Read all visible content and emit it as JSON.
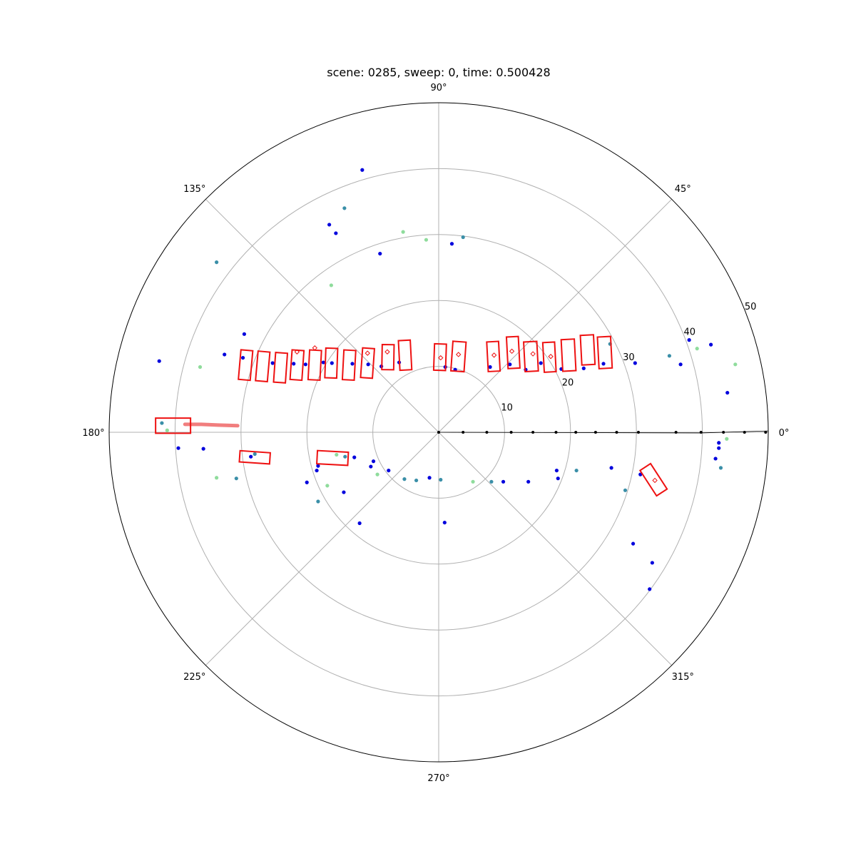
{
  "chart_data": {
    "type": "scatter",
    "projection": "polar",
    "title": "scene: 0285, sweep: 0, time: 0.500428",
    "angle_ticks_deg": [
      0,
      45,
      90,
      135,
      180,
      225,
      270,
      315
    ],
    "angle_tick_labels": [
      "0°",
      "45°",
      "90°",
      "135°",
      "180°",
      "225°",
      "270°",
      "315°"
    ],
    "radial_ticks": [
      10,
      20,
      30,
      40,
      50
    ],
    "radial_tick_labels": [
      "10",
      "20",
      "30",
      "40",
      "50"
    ],
    "rlim": [
      0,
      50
    ],
    "grid": true,
    "colors": {
      "boxes": "#ee1111",
      "trail": "#f07070",
      "points_dark": "#0000dd",
      "points_mid": "#3a8fa8",
      "points_light": "#8fdc9c",
      "grid": "#b0b0b0",
      "radar": "#000000"
    },
    "points": [
      [
        -11.6,
        39.8,
        0
      ],
      [
        -14.3,
        34.0,
        1
      ],
      [
        -16.6,
        31.5,
        0
      ],
      [
        -8.9,
        27.1,
        0
      ],
      [
        -5.4,
        30.4,
        2
      ],
      [
        2.0,
        28.6,
        0
      ],
      [
        3.7,
        29.6,
        1
      ],
      [
        -1.9,
        29.2,
        2
      ],
      [
        -33.7,
        25.8,
        1
      ],
      [
        -16.3,
        22.3,
        2
      ],
      [
        -15.6,
        30.2,
        0
      ],
      [
        -29.5,
        14.9,
        0
      ],
      [
        -42.4,
        10.8,
        0
      ],
      [
        -36.2,
        9.9,
        2
      ],
      [
        -32.5,
        11.8,
        0
      ],
      [
        -29.7,
        11.3,
        0
      ],
      [
        -25.2,
        10.5,
        0
      ],
      [
        -22.0,
        10.4,
        0
      ],
      [
        -20.2,
        10.3,
        0
      ],
      [
        -17.5,
        10.6,
        0
      ],
      [
        -16.2,
        10.5,
        0
      ],
      [
        -13.1,
        10.4,
        0
      ],
      [
        -10.7,
        10.3,
        0
      ],
      [
        -8.7,
        10.0,
        0
      ],
      [
        -6.0,
        10.6,
        0
      ],
      [
        1.0,
        9.9,
        0
      ],
      [
        2.5,
        9.5,
        0
      ],
      [
        7.8,
        9.9,
        0
      ],
      [
        10.8,
        10.3,
        0
      ],
      [
        13.2,
        9.5,
        0
      ],
      [
        15.5,
        10.5,
        0
      ],
      [
        18.6,
        9.6,
        0
      ],
      [
        22.0,
        9.7,
        0
      ],
      [
        25.0,
        10.4,
        0
      ],
      [
        29.8,
        10.5,
        0
      ],
      [
        26.0,
        13.4,
        1
      ],
      [
        38.0,
        14.0,
        0
      ],
      [
        39.2,
        12.7,
        2
      ],
      [
        35.0,
        11.6,
        1
      ],
      [
        36.7,
        10.3,
        0
      ],
      [
        41.3,
        13.3,
        0
      ],
      [
        43.8,
        6.0,
        0
      ],
      [
        45.0,
        10.3,
        2
      ],
      [
        -42.0,
        1.4,
        1
      ],
      [
        -41.2,
        0.3,
        2
      ],
      [
        -39.5,
        -2.4,
        0
      ],
      [
        -35.7,
        -2.5,
        0
      ],
      [
        -28.5,
        -3.7,
        0
      ],
      [
        -27.9,
        -3.3,
        1
      ],
      [
        -18.3,
        -5.1,
        0
      ],
      [
        -15.5,
        -3.4,
        2
      ],
      [
        -14.2,
        -3.7,
        1
      ],
      [
        -12.8,
        -3.8,
        0
      ],
      [
        -10.3,
        -5.2,
        0
      ],
      [
        -9.3,
        -6.4,
        2
      ],
      [
        -7.6,
        -5.8,
        0
      ],
      [
        -5.2,
        -7.1,
        1
      ],
      [
        -3.4,
        -7.3,
        1
      ],
      [
        -1.4,
        -6.9,
        0
      ],
      [
        0.3,
        -7.2,
        1
      ],
      [
        0.9,
        -13.7,
        0
      ],
      [
        5.2,
        -7.5,
        2
      ],
      [
        8.0,
        -7.5,
        1
      ],
      [
        9.8,
        -7.5,
        0
      ],
      [
        13.6,
        -7.5,
        0
      ],
      [
        17.9,
        -5.8,
        0
      ],
      [
        18.1,
        -7.0,
        0
      ],
      [
        20.9,
        -5.8,
        1
      ],
      [
        26.2,
        -5.4,
        0
      ],
      [
        28.3,
        -8.8,
        1
      ],
      [
        30.6,
        -6.4,
        0
      ],
      [
        29.5,
        -16.9,
        0
      ],
      [
        32.4,
        -19.8,
        0
      ],
      [
        32.0,
        -23.8,
        0
      ],
      [
        42.5,
        -1.6,
        0
      ],
      [
        43.7,
        -1.0,
        2
      ],
      [
        42.5,
        -2.4,
        0
      ],
      [
        42.0,
        -4.0,
        0
      ],
      [
        42.8,
        -5.4,
        1
      ],
      [
        -33.7,
        -6.9,
        2
      ],
      [
        -30.7,
        -7.0,
        1
      ],
      [
        -20.0,
        -7.6,
        0
      ],
      [
        -18.5,
        -5.8,
        0
      ],
      [
        -16.9,
        -8.1,
        2
      ],
      [
        -9.9,
        -4.4,
        0
      ],
      [
        -12.0,
        -13.8,
        0
      ],
      [
        -18.3,
        -10.5,
        1
      ],
      [
        -14.4,
        -9.1,
        0
      ]
    ],
    "boxes": [
      {
        "center": [
          -29.3,
          10.2
        ],
        "size": [
          1.8,
          4.5
        ],
        "yaw_deg": -5
      },
      {
        "center": [
          -26.7,
          10.0
        ],
        "size": [
          1.8,
          4.5
        ],
        "yaw_deg": -5
      },
      {
        "center": [
          -24.0,
          9.8
        ],
        "size": [
          1.8,
          4.5
        ],
        "yaw_deg": -4
      },
      {
        "center": [
          -21.5,
          10.2
        ],
        "size": [
          1.8,
          4.5
        ],
        "yaw_deg": -4
      },
      {
        "center": [
          -18.8,
          10.2
        ],
        "size": [
          1.8,
          4.5
        ],
        "yaw_deg": -3
      },
      {
        "center": [
          -16.3,
          10.5
        ],
        "size": [
          1.8,
          4.5
        ],
        "yaw_deg": -2
      },
      {
        "center": [
          -13.6,
          10.2
        ],
        "size": [
          1.8,
          4.5
        ],
        "yaw_deg": -3
      },
      {
        "center": [
          -10.8,
          10.5
        ],
        "size": [
          1.8,
          4.5
        ],
        "yaw_deg": -4
      },
      {
        "center": [
          -7.7,
          11.4
        ],
        "size": [
          1.8,
          3.8
        ],
        "yaw_deg": -1
      },
      {
        "center": [
          -5.1,
          11.7
        ],
        "size": [
          1.8,
          4.5
        ],
        "yaw_deg": 3
      },
      {
        "center": [
          0.2,
          11.4
        ],
        "size": [
          1.8,
          4.0
        ],
        "yaw_deg": -2
      },
      {
        "center": [
          3.0,
          11.5
        ],
        "size": [
          2.0,
          4.5
        ],
        "yaw_deg": -4
      },
      {
        "center": [
          8.3,
          11.5
        ],
        "size": [
          1.8,
          4.5
        ],
        "yaw_deg": 3
      },
      {
        "center": [
          11.3,
          12.1
        ],
        "size": [
          1.8,
          4.8
        ],
        "yaw_deg": 3
      },
      {
        "center": [
          14.0,
          11.5
        ],
        "size": [
          2.0,
          4.5
        ],
        "yaw_deg": 3
      },
      {
        "center": [
          16.8,
          11.4
        ],
        "size": [
          1.8,
          4.5
        ],
        "yaw_deg": 3
      },
      {
        "center": [
          19.7,
          11.7
        ],
        "size": [
          2.0,
          4.8
        ],
        "yaw_deg": 3
      },
      {
        "center": [
          22.6,
          12.5
        ],
        "size": [
          2.0,
          4.5
        ],
        "yaw_deg": 3
      },
      {
        "center": [
          25.2,
          12.1
        ],
        "size": [
          2.0,
          4.8
        ],
        "yaw_deg": 3
      },
      {
        "center": [
          -40.3,
          1.0
        ],
        "size": [
          5.3,
          2.3
        ],
        "yaw_deg": 0
      },
      {
        "center": [
          -27.9,
          -3.8
        ],
        "size": [
          4.6,
          1.7
        ],
        "yaw_deg": -4
      },
      {
        "center": [
          -16.1,
          -3.9
        ],
        "size": [
          4.7,
          2.0
        ],
        "yaw_deg": -3
      },
      {
        "center": [
          32.6,
          -7.2
        ],
        "size": [
          1.9,
          4.6
        ],
        "yaw_deg": 33
      }
    ],
    "small_markers": [
      [
        -21.5,
        12.2
      ],
      [
        -18.8,
        12.8
      ],
      [
        -10.8,
        12.0
      ],
      [
        -7.8,
        12.2
      ],
      [
        0.3,
        11.3
      ],
      [
        3.0,
        11.8
      ],
      [
        8.4,
        11.7
      ],
      [
        11.1,
        12.3
      ],
      [
        14.3,
        11.9
      ],
      [
        17.0,
        11.5
      ],
      [
        32.8,
        -7.3
      ]
    ],
    "trail": [
      [
        -38.5,
        1.2
      ],
      [
        -36.0,
        1.2
      ],
      [
        -33.5,
        1.1
      ],
      [
        -30.5,
        1.0
      ]
    ],
    "radar_points": [
      [
        0,
        0
      ],
      [
        3.7,
        0
      ],
      [
        7.3,
        0
      ],
      [
        11.0,
        0
      ],
      [
        14.3,
        0
      ],
      [
        17.8,
        0
      ],
      [
        20.8,
        0
      ],
      [
        23.8,
        0
      ],
      [
        27.0,
        0
      ],
      [
        30.3,
        0
      ],
      [
        36.0,
        0
      ],
      [
        39.8,
        0
      ],
      [
        43.2,
        0
      ],
      [
        46.4,
        0
      ],
      [
        49.6,
        0
      ]
    ],
    "radar_line": [
      [
        0,
        0
      ],
      [
        39.8,
        -0.1
      ],
      [
        50.0,
        0.2
      ]
    ]
  }
}
